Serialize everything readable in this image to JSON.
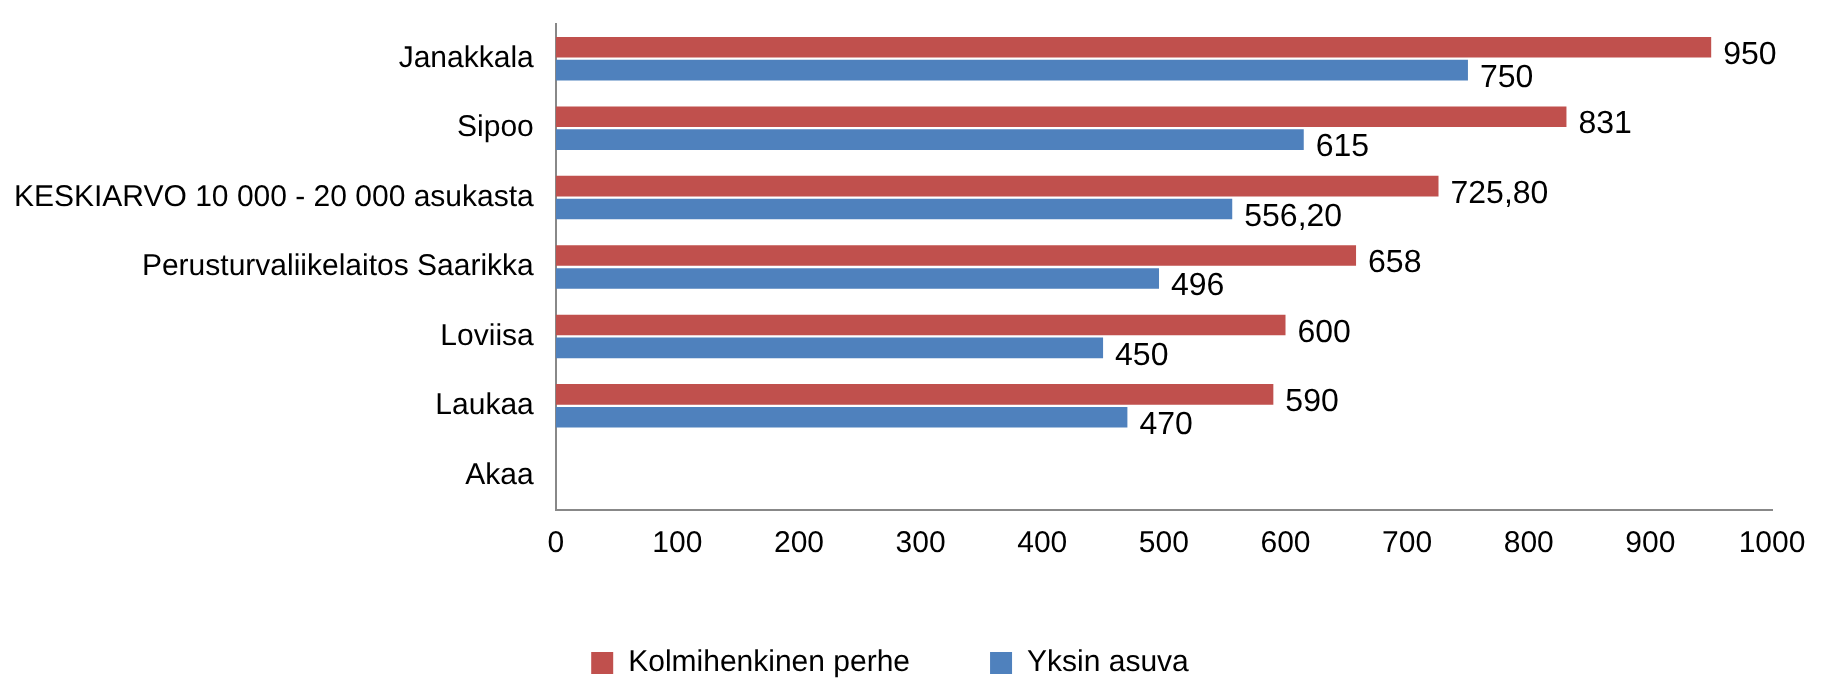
{
  "chart_data": {
    "type": "bar",
    "orientation": "horizontal",
    "categories": [
      "Janakkala",
      "Sipoo",
      "KESKIARVO 10 000 - 20 000 asukasta",
      "Perusturvaliikelaitos Saarikka",
      "Loviisa",
      "Laukaa",
      "Akaa"
    ],
    "series": [
      {
        "name": "Kolmihenkinen perhe",
        "color": "#c0504d",
        "values": [
          950,
          831,
          725.8,
          658,
          600,
          590,
          null
        ],
        "value_labels": [
          "950",
          "831",
          "725,80",
          "658",
          "600",
          "590",
          null
        ]
      },
      {
        "name": "Yksin asuva",
        "color": "#4f81bd",
        "values": [
          750,
          615,
          556.2,
          496,
          450,
          470,
          null
        ],
        "value_labels": [
          "750",
          "615",
          "556,20",
          "496",
          "450",
          "470",
          null
        ]
      }
    ],
    "xlim": [
      0,
      1000
    ],
    "xticks": [
      0,
      100,
      200,
      300,
      400,
      500,
      600,
      700,
      800,
      900,
      1000
    ],
    "legend": "bottom"
  }
}
